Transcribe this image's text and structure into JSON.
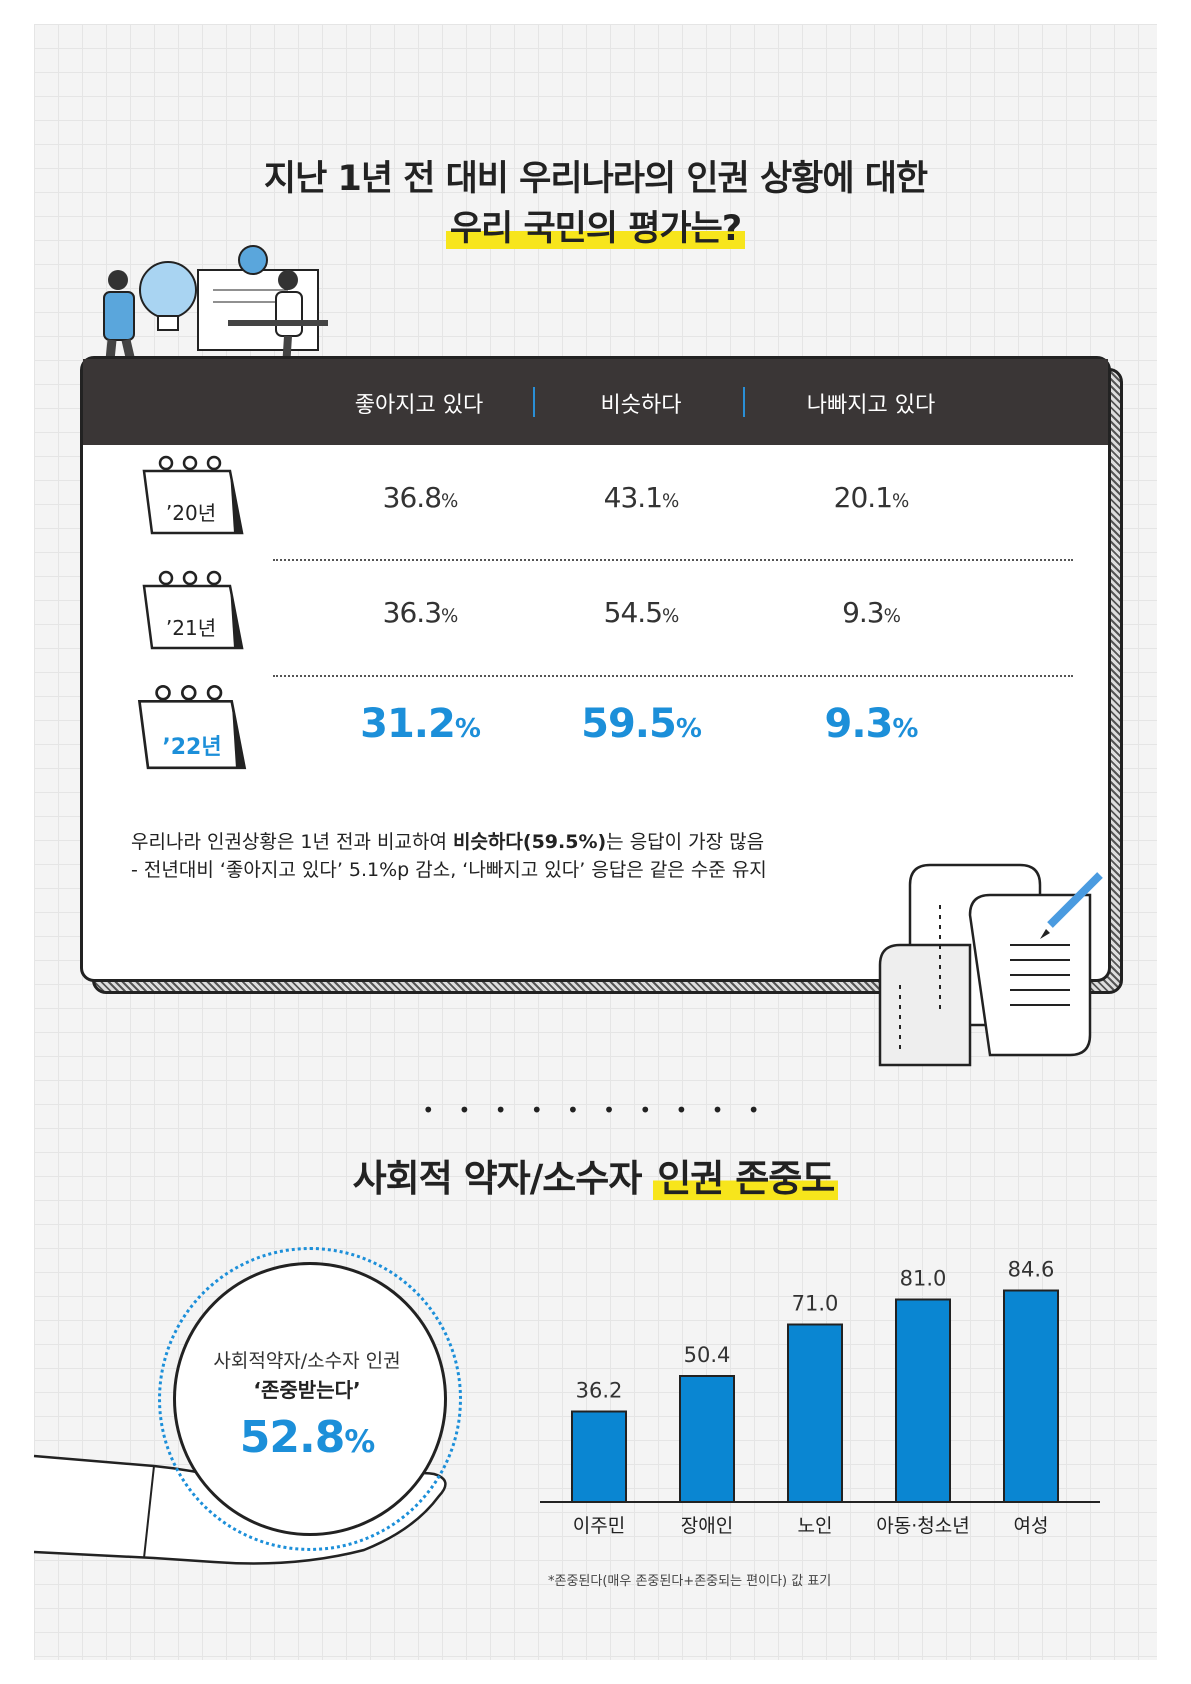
{
  "header": {
    "title_line1": "지난 1년 전 대비 우리나라의 인권 상황에 대한",
    "title_line2": "우리 국민의 평가는?"
  },
  "table": {
    "columns": [
      "좋아지고 있다",
      "비슷하다",
      "나빠지고 있다"
    ],
    "rows": [
      {
        "year": "’20년",
        "values": [
          "36.8",
          "43.1",
          "20.1"
        ]
      },
      {
        "year": "’21년",
        "values": [
          "36.3",
          "54.5",
          "9.3"
        ]
      },
      {
        "year": "’22년",
        "values": [
          "31.2",
          "59.5",
          "9.3"
        ]
      }
    ],
    "unit": "%",
    "note_line1_a": "우리나라 인권상황은 1년 전과 비교하여 ",
    "note_line1_bold": "비슷하다(59.5%)",
    "note_line1_b": "는 응답이 가장 많음",
    "note_line2": "- 전년대비 ‘좋아지고 있다’ 5.1%p 감소, ‘나빠지고 있다’ 응답은 같은 수준 유지"
  },
  "section2": {
    "separator": "• • • • • • • • • •",
    "title_a": "사회적 약자/소수자 ",
    "title_b": "인권 존중도",
    "circle_line1": "사회적약자/소수자 인권",
    "circle_line2": "‘존중받는다’",
    "circle_value": "52.8",
    "circle_unit": "%",
    "footnote": "*존중된다(매우 존중된다+존중되는 편이다) 값 표기"
  },
  "colors": {
    "accent": "#1c8fd9",
    "bar": "#0a86d2",
    "highlight": "#f7e51c",
    "header": "#3a3636"
  },
  "chart_data": [
    {
      "type": "table",
      "columns": [
        "좋아지고 있다",
        "비슷하다",
        "나빠지고 있다"
      ],
      "rows": [
        "’20년",
        "’21년",
        "’22년"
      ],
      "values": [
        [
          36.8,
          43.1,
          20.1
        ],
        [
          36.3,
          54.5,
          9.3
        ],
        [
          31.2,
          59.5,
          9.3
        ]
      ]
    },
    {
      "type": "bar",
      "categories": [
        "이주민",
        "장애인",
        "노인",
        "아동·청소년",
        "여성"
      ],
      "values": [
        36.2,
        50.4,
        71.0,
        81.0,
        84.6
      ],
      "labels": [
        "36.2",
        "50.4",
        "71.0",
        "81.0",
        "84.6"
      ],
      "ylim": [
        0,
        100
      ]
    }
  ]
}
